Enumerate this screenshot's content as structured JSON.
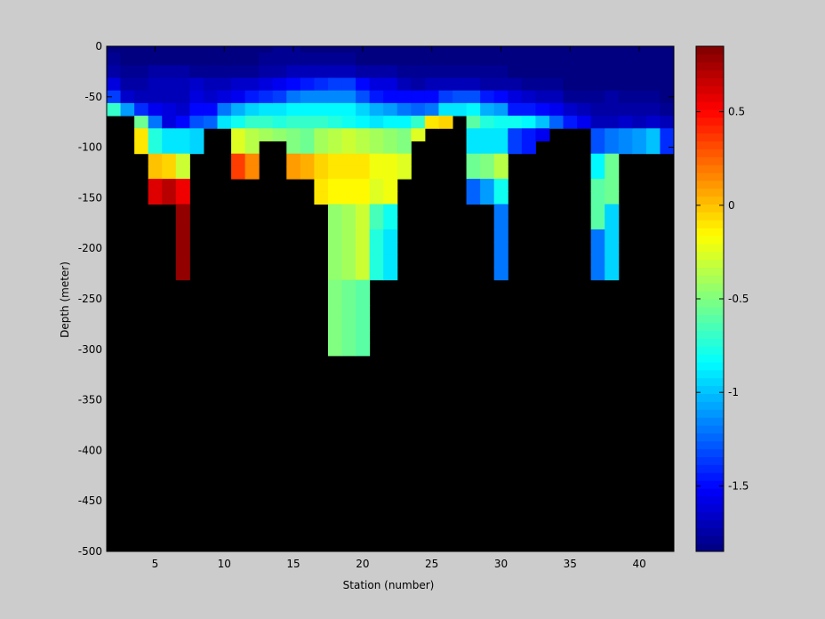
{
  "chart_data": {
    "type": "heatmap",
    "title": "",
    "xlabel": "Station (number)",
    "ylabel": "Depth (meter)",
    "xlim": [
      1.5,
      42.5
    ],
    "ylim": [
      -500,
      0
    ],
    "x_ticks": [
      "5",
      "10",
      "15",
      "20",
      "25",
      "30",
      "35",
      "40"
    ],
    "y_ticks": [
      "0",
      "-50",
      "-100",
      "-150",
      "-200",
      "-250",
      "-300",
      "-350",
      "-400",
      "-450",
      "-500"
    ],
    "stations": [
      2,
      3,
      4,
      5,
      6,
      7,
      8,
      9,
      10,
      11,
      12,
      13,
      14,
      15,
      16,
      17,
      18,
      19,
      20,
      21,
      22,
      23,
      24,
      25,
      26,
      27,
      28,
      29,
      30,
      31,
      32,
      33,
      34,
      35,
      36,
      37,
      38,
      39,
      40,
      41,
      42
    ],
    "depths": [
      0,
      -12.5,
      -25,
      -37.5,
      -50,
      -62.5,
      -75,
      -87.5,
      -100,
      -112.5,
      -125,
      -137.5,
      -150,
      -162.5,
      -175,
      -187.5,
      -200,
      -212.5,
      -225,
      -237.5,
      -250,
      -262.5,
      -275,
      -287.5,
      -300,
      -312.5,
      -325,
      -337.5,
      -350,
      -362.5,
      -375,
      -387.5,
      -400,
      -412.5,
      -425,
      -437.5,
      -450,
      -462.5,
      -475,
      -487.5,
      -500
    ],
    "no_data_color": "#000000",
    "colormap": "jet",
    "colorbar": {
      "range": [
        -1.85,
        0.85
      ],
      "ticks": [
        "0.5",
        "0",
        "-0.5",
        "-1",
        "-1.5"
      ]
    },
    "profiles": [
      {
        "x": 2,
        "values": [
          -1.85,
          -1.8,
          -1.75,
          -1.6,
          -1.35,
          -0.7
        ]
      },
      {
        "x": 3,
        "values": [
          -1.85,
          -1.85,
          -1.8,
          -1.75,
          -1.65,
          -1.1
        ]
      },
      {
        "x": 4,
        "values": [
          -1.85,
          -1.85,
          -1.8,
          -1.75,
          -1.7,
          -1.4,
          -0.55,
          -0.1,
          -0.1
        ]
      },
      {
        "x": 5,
        "values": [
          -1.85,
          -1.85,
          -1.75,
          -1.7,
          -1.7,
          -1.55,
          -1.2,
          -0.75,
          -0.75,
          0.0,
          0.0,
          0.6,
          0.6
        ]
      },
      {
        "x": 6,
        "values": [
          -1.85,
          -1.85,
          -1.75,
          -1.7,
          -1.7,
          -1.6,
          -1.6,
          -0.9,
          -0.9,
          -0.05,
          -0.05,
          0.7,
          0.7
        ]
      },
      {
        "x": 7,
        "values": [
          -1.85,
          -1.85,
          -1.75,
          -1.7,
          -1.7,
          -1.65,
          -1.5,
          -0.9,
          -0.9,
          -0.3,
          -0.3,
          0.55,
          0.55,
          0.8,
          0.8,
          0.8,
          0.8,
          0.8,
          0.8
        ]
      },
      {
        "x": 8,
        "values": [
          -1.85,
          -1.85,
          -1.8,
          -1.65,
          -1.6,
          -1.5,
          -1.3,
          -0.95,
          -0.95
        ]
      },
      {
        "x": 9,
        "values": [
          -1.85,
          -1.85,
          -1.8,
          -1.7,
          -1.65,
          -1.5,
          -1.25
        ]
      },
      {
        "x": 10,
        "values": [
          -1.85,
          -1.85,
          -1.8,
          -1.7,
          -1.6,
          -1.2,
          -0.9
        ]
      },
      {
        "x": 11,
        "values": [
          -1.85,
          -1.85,
          -1.8,
          -1.65,
          -1.55,
          -1.05,
          -0.8,
          -0.25,
          -0.25,
          0.35,
          0.35
        ]
      },
      {
        "x": 12,
        "values": [
          -1.85,
          -1.85,
          -1.8,
          -1.65,
          -1.45,
          -0.95,
          -0.7,
          -0.35,
          -0.35,
          0.15,
          0.15
        ]
      },
      {
        "x": 13,
        "values": [
          -1.85,
          -1.8,
          -1.75,
          -1.6,
          -1.4,
          -0.9,
          -0.7,
          -0.4
        ]
      },
      {
        "x": 14,
        "values": [
          -1.8,
          -1.8,
          -1.75,
          -1.55,
          -1.35,
          -0.9,
          -0.75,
          -0.45
        ]
      },
      {
        "x": 15,
        "values": [
          -1.8,
          -1.8,
          -1.7,
          -1.5,
          -1.2,
          -0.85,
          -0.7,
          -0.5,
          -0.5,
          0.1,
          0.1
        ]
      },
      {
        "x": 16,
        "values": [
          -1.85,
          -1.8,
          -1.7,
          -1.45,
          -1.15,
          -0.85,
          -0.7,
          -0.55,
          -0.55,
          0.05,
          0.05
        ]
      },
      {
        "x": 17,
        "values": [
          -1.85,
          -1.8,
          -1.7,
          -1.4,
          -1.15,
          -0.85,
          -0.7,
          -0.4,
          -0.4,
          -0.05,
          -0.05,
          -0.1,
          -0.1
        ]
      },
      {
        "x": 18,
        "values": [
          -1.85,
          -1.8,
          -1.7,
          -1.35,
          -1.15,
          -0.85,
          -0.75,
          -0.35,
          -0.35,
          -0.1,
          -0.1,
          -0.15,
          -0.15,
          -0.45,
          -0.45,
          -0.45,
          -0.45,
          -0.45,
          -0.45,
          -0.5,
          -0.5,
          -0.5,
          -0.5,
          -0.5,
          -0.5
        ]
      },
      {
        "x": 19,
        "values": [
          -1.85,
          -1.8,
          -1.7,
          -1.35,
          -1.15,
          -0.85,
          -0.8,
          -0.3,
          -0.3,
          -0.1,
          -0.1,
          -0.15,
          -0.15,
          -0.4,
          -0.4,
          -0.4,
          -0.4,
          -0.4,
          -0.4,
          -0.55,
          -0.55,
          -0.55,
          -0.55,
          -0.55,
          -0.55
        ]
      },
      {
        "x": 20,
        "values": [
          -1.85,
          -1.85,
          -1.75,
          -1.5,
          -1.3,
          -0.95,
          -0.85,
          -0.35,
          -0.35,
          -0.1,
          -0.1,
          -0.15,
          -0.15,
          -0.3,
          -0.3,
          -0.3,
          -0.3,
          -0.3,
          -0.3,
          -0.6,
          -0.6,
          -0.6,
          -0.6,
          -0.6,
          -0.6
        ]
      },
      {
        "x": 21,
        "values": [
          -1.85,
          -1.85,
          -1.75,
          -1.6,
          -1.45,
          -1.05,
          -0.9,
          -0.4,
          -0.4,
          -0.2,
          -0.2,
          -0.25,
          -0.25,
          -0.65,
          -0.65,
          -0.75,
          -0.75,
          -0.75,
          -0.75
        ]
      },
      {
        "x": 22,
        "values": [
          -1.85,
          -1.85,
          -1.75,
          -1.6,
          -1.5,
          -1.1,
          -0.85,
          -0.45,
          -0.45,
          -0.2,
          -0.2,
          -0.2,
          -0.2,
          -0.8,
          -0.8,
          -0.9,
          -0.9,
          -0.9,
          -0.9
        ]
      },
      {
        "x": 23,
        "values": [
          -1.85,
          -1.85,
          -1.8,
          -1.7,
          -1.5,
          -1.2,
          -0.85,
          -0.5,
          -0.5,
          -0.25,
          -0.25
        ]
      },
      {
        "x": 24,
        "values": [
          -1.85,
          -1.85,
          -1.8,
          -1.75,
          -1.5,
          -1.25,
          -0.7,
          -0.25
        ]
      },
      {
        "x": 25,
        "values": [
          -1.85,
          -1.85,
          -1.8,
          -1.7,
          -1.5,
          -1.2,
          -0.1
        ]
      },
      {
        "x": 26,
        "values": [
          -1.85,
          -1.85,
          -1.8,
          -1.7,
          -1.35,
          -0.9,
          -0.05
        ]
      },
      {
        "x": 27,
        "values": [
          -1.85,
          -1.85,
          -1.8,
          -1.7,
          -1.3,
          -0.9
        ]
      },
      {
        "x": 28,
        "values": [
          -1.85,
          -1.85,
          -1.8,
          -1.7,
          -1.3,
          -0.85,
          -0.6,
          -0.9,
          -0.9,
          -0.55,
          -0.55,
          -1.25,
          -1.25
        ]
      },
      {
        "x": 29,
        "values": [
          -1.85,
          -1.85,
          -1.8,
          -1.75,
          -1.45,
          -1.05,
          -0.75,
          -0.9,
          -0.9,
          -0.5,
          -0.5,
          -1.1,
          -1.1
        ]
      },
      {
        "x": 30,
        "values": [
          -1.85,
          -1.85,
          -1.8,
          -1.75,
          -1.5,
          -1.1,
          -0.8,
          -0.9,
          -0.9,
          -0.35,
          -0.35,
          -0.8,
          -0.8,
          -1.2,
          -1.2,
          -1.2,
          -1.2,
          -1.2,
          -1.2
        ]
      },
      {
        "x": 31,
        "values": [
          -1.85,
          -1.85,
          -1.85,
          -1.75,
          -1.6,
          -1.45,
          -0.8,
          -1.35,
          -1.35
        ]
      },
      {
        "x": 32,
        "values": [
          -1.85,
          -1.85,
          -1.85,
          -1.8,
          -1.65,
          -1.45,
          -0.85,
          -1.45,
          -1.45
        ]
      },
      {
        "x": 33,
        "values": [
          -1.85,
          -1.85,
          -1.85,
          -1.8,
          -1.7,
          -1.5,
          -1.0,
          -1.55
        ]
      },
      {
        "x": 34,
        "values": [
          -1.85,
          -1.85,
          -1.85,
          -1.8,
          -1.7,
          -1.55,
          -1.25
        ]
      },
      {
        "x": 35,
        "values": [
          -1.85,
          -1.85,
          -1.85,
          -1.85,
          -1.8,
          -1.65,
          -1.45
        ]
      },
      {
        "x": 36,
        "values": [
          -1.85,
          -1.85,
          -1.85,
          -1.85,
          -1.8,
          -1.7,
          -1.55
        ]
      },
      {
        "x": 37,
        "values": [
          -1.85,
          -1.85,
          -1.85,
          -1.85,
          -1.8,
          -1.75,
          -1.7,
          -1.3,
          -1.3,
          -0.85,
          -0.85,
          -0.6,
          -0.6,
          -0.6,
          -0.6,
          -1.2,
          -1.2,
          -1.2,
          -1.2
        ]
      },
      {
        "x": 38,
        "values": [
          -1.85,
          -1.85,
          -1.85,
          -1.85,
          -1.75,
          -1.75,
          -1.7,
          -1.2,
          -1.2,
          -0.55,
          -0.55,
          -0.55,
          -0.55,
          -0.95,
          -0.95,
          -0.95,
          -0.95,
          -0.95,
          -0.95
        ]
      },
      {
        "x": 39,
        "values": [
          -1.85,
          -1.85,
          -1.85,
          -1.85,
          -1.8,
          -1.75,
          -1.65,
          -1.15,
          -1.15
        ]
      },
      {
        "x": 40,
        "values": [
          -1.85,
          -1.85,
          -1.85,
          -1.85,
          -1.8,
          -1.75,
          -1.7,
          -1.1,
          -1.1
        ]
      },
      {
        "x": 41,
        "values": [
          -1.85,
          -1.85,
          -1.85,
          -1.85,
          -1.8,
          -1.75,
          -1.65,
          -1.0,
          -1.0
        ]
      },
      {
        "x": 42,
        "values": [
          -1.85,
          -1.85,
          -1.85,
          -1.85,
          -1.85,
          -1.8,
          -1.7,
          -1.4,
          -1.4
        ]
      }
    ]
  }
}
